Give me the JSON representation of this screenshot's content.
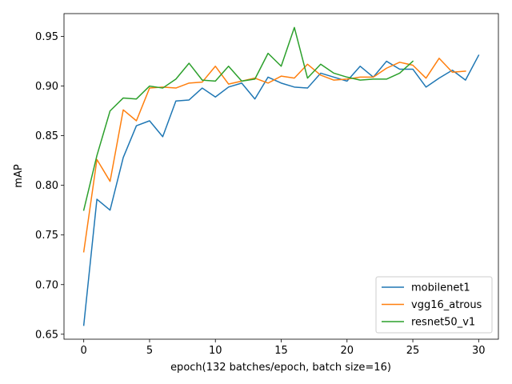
{
  "chart_data": {
    "type": "line",
    "title": "",
    "xlabel": "epoch(132 batches/epoch, batch size=16)",
    "ylabel": "mAP",
    "xlim": [
      -1.5,
      31.5
    ],
    "ylim": [
      0.645,
      0.973
    ],
    "x_ticks": [
      0,
      5,
      10,
      15,
      20,
      25,
      30
    ],
    "y_ticks": [
      0.65,
      0.7,
      0.75,
      0.8,
      0.85,
      0.9,
      0.95
    ],
    "x_tick_labels": [
      "0",
      "5",
      "10",
      "15",
      "20",
      "25",
      "30"
    ],
    "y_tick_labels": [
      "0.65",
      "0.70",
      "0.75",
      "0.80",
      "0.85",
      "0.90",
      "0.95"
    ],
    "grid": false,
    "legend_position": "lower-right",
    "series": [
      {
        "name": "mobilenet1",
        "color": "#1f77b4",
        "x": [
          0,
          1,
          2,
          3,
          4,
          5,
          6,
          7,
          8,
          9,
          10,
          11,
          12,
          13,
          14,
          15,
          16,
          17,
          18,
          19,
          20,
          21,
          22,
          23,
          24,
          25,
          26,
          27,
          28,
          29,
          30
        ],
        "values": [
          0.659,
          0.786,
          0.775,
          0.828,
          0.86,
          0.865,
          0.849,
          0.885,
          0.886,
          0.898,
          0.889,
          0.899,
          0.903,
          0.887,
          0.909,
          0.903,
          0.899,
          0.898,
          0.913,
          0.909,
          0.905,
          0.92,
          0.909,
          0.925,
          0.917,
          0.917,
          0.899,
          0.908,
          0.916,
          0.906,
          0.931
        ]
      },
      {
        "name": "vgg16_atrous",
        "color": "#ff7f0e",
        "x": [
          0,
          1,
          2,
          3,
          4,
          5,
          6,
          7,
          8,
          9,
          10,
          11,
          12,
          13,
          14,
          15,
          16,
          17,
          18,
          19,
          20,
          21,
          22,
          23,
          24,
          25,
          26,
          27,
          28,
          29
        ],
        "values": [
          0.733,
          0.826,
          0.804,
          0.876,
          0.865,
          0.898,
          0.899,
          0.898,
          0.903,
          0.904,
          0.92,
          0.902,
          0.905,
          0.908,
          0.903,
          0.91,
          0.908,
          0.922,
          0.911,
          0.906,
          0.907,
          0.909,
          0.909,
          0.918,
          0.924,
          0.921,
          0.908,
          0.928,
          0.914,
          0.915
        ]
      },
      {
        "name": "resnet50_v1",
        "color": "#2ca02c",
        "x": [
          0,
          1,
          2,
          3,
          4,
          5,
          6,
          7,
          8,
          9,
          10,
          11,
          12,
          13,
          14,
          15,
          16,
          17,
          18,
          19,
          20,
          21,
          22,
          23,
          24,
          25
        ],
        "values": [
          0.775,
          0.83,
          0.875,
          0.888,
          0.887,
          0.9,
          0.898,
          0.907,
          0.923,
          0.906,
          0.905,
          0.92,
          0.905,
          0.907,
          0.933,
          0.92,
          0.959,
          0.908,
          0.922,
          0.913,
          0.909,
          0.906,
          0.907,
          0.907,
          0.913,
          0.925
        ]
      }
    ]
  }
}
